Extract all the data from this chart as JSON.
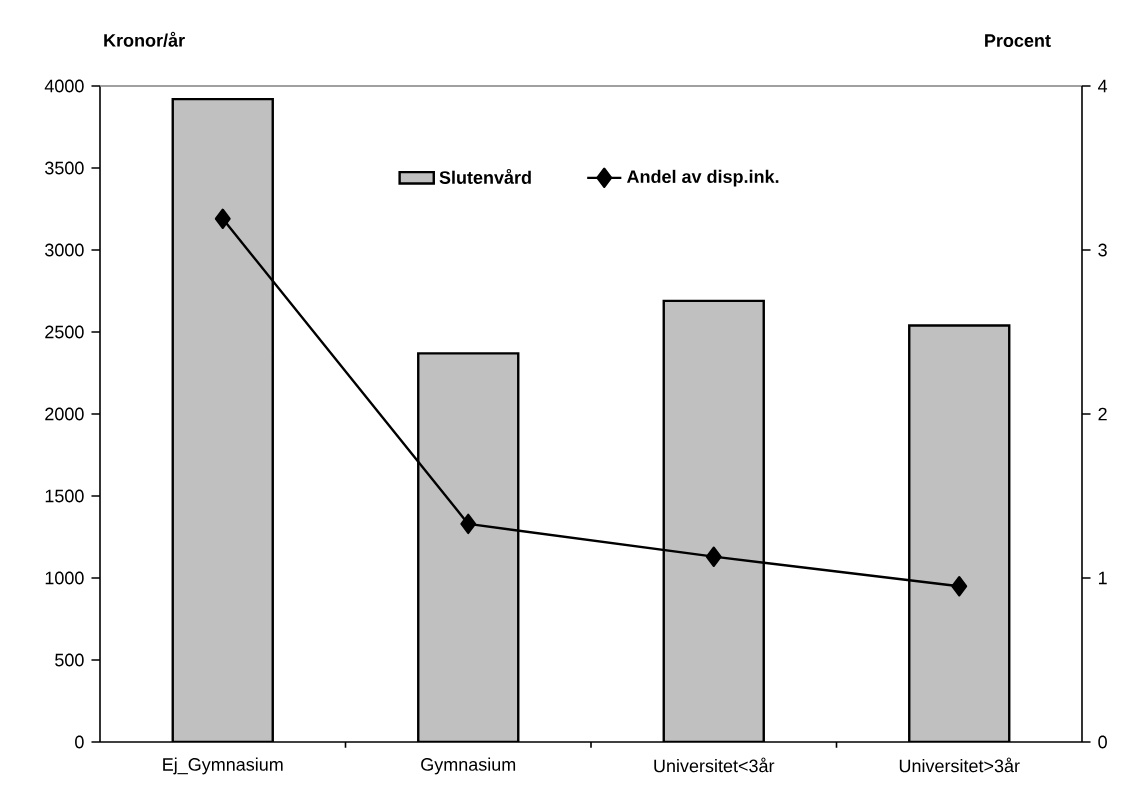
{
  "chart_data": {
    "type": "bar",
    "ylabel": "Kronor/år",
    "y2label": "Procent",
    "categories": [
      "Ej_Gymnasium",
      "Gymnasium",
      "Universitet<3år",
      "Universitet>3år"
    ],
    "series": [
      {
        "name": "Slutenvård",
        "type": "bar",
        "color": "#c0c0c0",
        "values": [
          3920,
          2370,
          2690,
          2540
        ]
      },
      {
        "name": "Andel av disp.ink.",
        "type": "line",
        "axis": "y2",
        "color": "#000000",
        "marker": "diamond",
        "values": [
          3.19,
          1.33,
          1.13,
          0.95
        ]
      }
    ],
    "ylim": [
      0,
      4000
    ],
    "yticks": [
      0,
      500,
      1000,
      1500,
      2000,
      2500,
      3000,
      3500,
      4000
    ],
    "y2lim": [
      0,
      4
    ],
    "y2ticks": [
      0,
      1,
      2,
      3,
      4
    ],
    "legend": "top"
  }
}
